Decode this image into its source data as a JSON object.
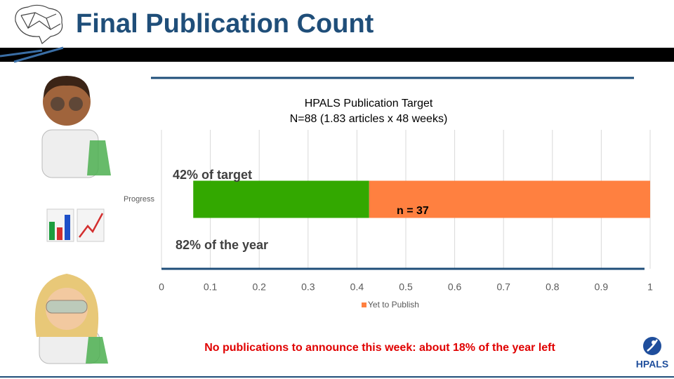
{
  "slide": {
    "title": "Final Publication Count",
    "footer": "No publications to announce this week: about 18% of the year left",
    "logo": "HPALS"
  },
  "chart_data": {
    "type": "stacked-barh",
    "title": "HPALS Publication Target",
    "subtitle": "N=88 (1.83 articles x 48 weeks)",
    "categories": [
      "Progress"
    ],
    "series": [
      {
        "color": "transparent",
        "values": [
          0.065
        ]
      },
      {
        "color": "#33a800",
        "values": [
          0.36
        ]
      },
      {
        "name": "Yet to Publish",
        "color": "#ff8040",
        "values": [
          0.575
        ]
      }
    ],
    "xlim": [
      0,
      1
    ],
    "xticks": [
      0,
      0.1,
      0.2,
      0.3,
      0.4,
      0.5,
      0.6,
      0.7,
      0.8,
      0.9,
      1
    ],
    "grid": true,
    "annotations": [
      "42% of target",
      "n = 37",
      "82% of the year"
    ]
  }
}
